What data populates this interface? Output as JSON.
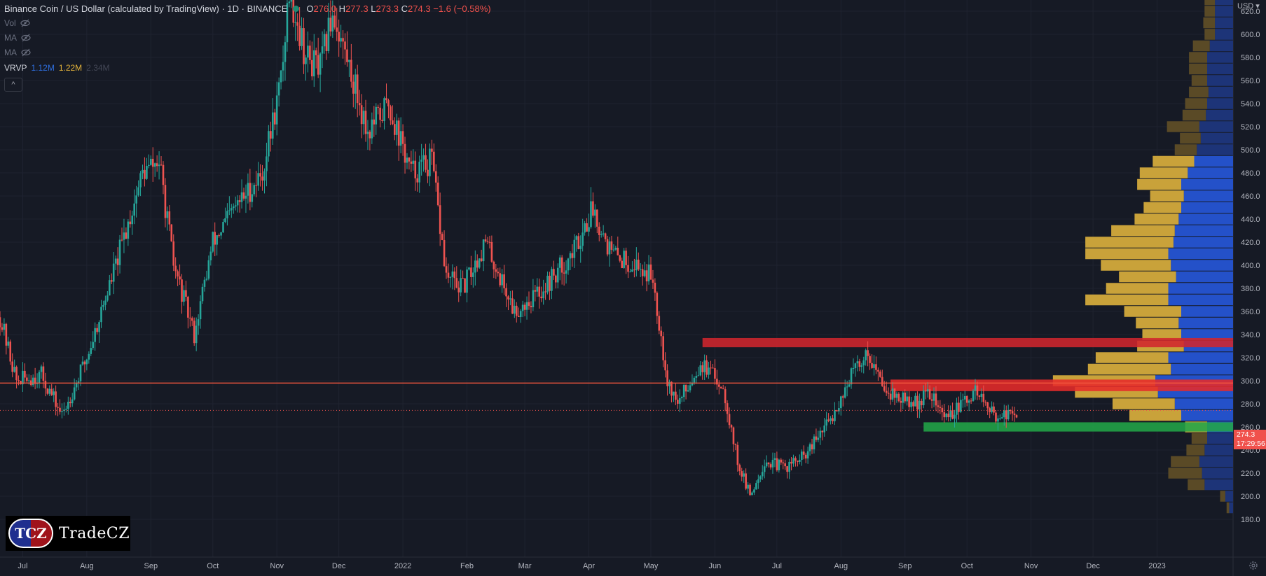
{
  "header": {
    "symbol": "Binance Coin / US Dollar (calculated by TradingView) · 1D · BINANCE",
    "o_label": "O",
    "o": "276.0",
    "h_label": "H",
    "h": "277.3",
    "l_label": "L",
    "l": "273.3",
    "c_label": "C",
    "c": "274.3",
    "change": "−1.6 (−0.58%)"
  },
  "indicators": [
    {
      "label": "Vol"
    },
    {
      "label": "MA"
    },
    {
      "label": "MA"
    }
  ],
  "vrvp": {
    "label": "VRVP",
    "v1": "1.12M",
    "v2": "1.22M",
    "v3": "2.34M"
  },
  "currency": "USD",
  "last_price": {
    "value": "274.3",
    "countdown": "17:29:56"
  },
  "logo": {
    "badge": "TCZ",
    "text": "TradeCZ"
  },
  "colors": {
    "background": "#161a25",
    "grid": "#1f2330",
    "axis_text": "#b2b5be",
    "up": "#26a69a",
    "down": "#ef5350",
    "resistance": "#e62a2a",
    "support": "#22a548",
    "vp_up": "#2451c9",
    "vp_down": "#c9a23a"
  },
  "chart_data": {
    "type": "candlestick",
    "title": "Binance Coin / US Dollar (calculated by TradingView)",
    "interval": "1D",
    "exchange": "BINANCE",
    "x_ticks": [
      "Jul",
      "Aug",
      "Sep",
      "Oct",
      "Nov",
      "Dec",
      "2022",
      "Feb",
      "Mar",
      "Apr",
      "May",
      "Jun",
      "Jul",
      "Aug",
      "Sep",
      "Oct",
      "Nov",
      "Dec",
      "2023"
    ],
    "y_ticks": [
      180,
      200,
      220,
      240,
      260,
      280,
      300,
      320,
      340,
      360,
      380,
      400,
      420,
      440,
      460,
      480,
      500,
      520,
      540,
      560,
      580,
      600,
      620
    ],
    "ylim": [
      170,
      640
    ],
    "price_path": [
      {
        "date": "2021-06-20",
        "close": 355
      },
      {
        "date": "2021-06-28",
        "close": 300
      },
      {
        "date": "2021-07-10",
        "close": 305
      },
      {
        "date": "2021-07-20",
        "close": 270
      },
      {
        "date": "2021-08-01",
        "close": 320
      },
      {
        "date": "2021-08-15",
        "close": 400
      },
      {
        "date": "2021-08-28",
        "close": 480
      },
      {
        "date": "2021-09-05",
        "close": 490
      },
      {
        "date": "2021-09-12",
        "close": 400
      },
      {
        "date": "2021-09-22",
        "close": 340
      },
      {
        "date": "2021-10-01",
        "close": 420
      },
      {
        "date": "2021-10-12",
        "close": 450
      },
      {
        "date": "2021-10-25",
        "close": 480
      },
      {
        "date": "2021-11-03",
        "close": 560
      },
      {
        "date": "2021-11-07",
        "close": 640
      },
      {
        "date": "2021-11-15",
        "close": 580
      },
      {
        "date": "2021-11-22",
        "close": 570
      },
      {
        "date": "2021-11-28",
        "close": 620
      },
      {
        "date": "2021-12-08",
        "close": 560
      },
      {
        "date": "2021-12-15",
        "close": 515
      },
      {
        "date": "2021-12-25",
        "close": 540
      },
      {
        "date": "2022-01-05",
        "close": 480
      },
      {
        "date": "2022-01-15",
        "close": 490
      },
      {
        "date": "2022-01-22",
        "close": 390
      },
      {
        "date": "2022-01-30",
        "close": 380
      },
      {
        "date": "2022-02-10",
        "close": 420
      },
      {
        "date": "2022-02-24",
        "close": 360
      },
      {
        "date": "2022-03-10",
        "close": 380
      },
      {
        "date": "2022-03-24",
        "close": 410
      },
      {
        "date": "2022-04-03",
        "close": 450
      },
      {
        "date": "2022-04-12",
        "close": 410
      },
      {
        "date": "2022-04-24",
        "close": 400
      },
      {
        "date": "2022-05-02",
        "close": 390
      },
      {
        "date": "2022-05-09",
        "close": 300
      },
      {
        "date": "2022-05-14",
        "close": 280
      },
      {
        "date": "2022-05-25",
        "close": 315
      },
      {
        "date": "2022-06-05",
        "close": 295
      },
      {
        "date": "2022-06-12",
        "close": 230
      },
      {
        "date": "2022-06-18",
        "close": 200
      },
      {
        "date": "2022-06-25",
        "close": 230
      },
      {
        "date": "2022-07-05",
        "close": 225
      },
      {
        "date": "2022-07-15",
        "close": 235
      },
      {
        "date": "2022-07-28",
        "close": 270
      },
      {
        "date": "2022-08-06",
        "close": 305
      },
      {
        "date": "2022-08-14",
        "close": 325
      },
      {
        "date": "2022-08-20",
        "close": 300
      },
      {
        "date": "2022-08-28",
        "close": 285
      },
      {
        "date": "2022-09-06",
        "close": 280
      },
      {
        "date": "2022-09-13",
        "close": 290
      },
      {
        "date": "2022-09-20",
        "close": 268
      },
      {
        "date": "2022-09-28",
        "close": 278
      },
      {
        "date": "2022-10-06",
        "close": 292
      },
      {
        "date": "2022-10-12",
        "close": 272
      },
      {
        "date": "2022-10-20",
        "close": 270
      },
      {
        "date": "2022-10-25",
        "close": 274.3
      }
    ],
    "annotations": {
      "horizontal_line": 298,
      "last_price_line": 274.3,
      "resistance_zone_upper": [
        329,
        337
      ],
      "resistance_zone_lower": [
        291,
        301
      ],
      "support_zone": [
        256,
        264
      ]
    },
    "volume_profile": [
      {
        "price": 630,
        "up": 14,
        "down": 8
      },
      {
        "price": 620,
        "up": 14,
        "down": 8
      },
      {
        "price": 610,
        "up": 14,
        "down": 9
      },
      {
        "price": 600,
        "up": 14,
        "down": 8
      },
      {
        "price": 590,
        "up": 18,
        "down": 13
      },
      {
        "price": 580,
        "up": 20,
        "down": 14
      },
      {
        "price": 570,
        "up": 20,
        "down": 14
      },
      {
        "price": 560,
        "up": 20,
        "down": 12
      },
      {
        "price": 550,
        "up": 19,
        "down": 15
      },
      {
        "price": 540,
        "up": 20,
        "down": 17
      },
      {
        "price": 530,
        "up": 21,
        "down": 18
      },
      {
        "price": 520,
        "up": 26,
        "down": 25
      },
      {
        "price": 510,
        "up": 25,
        "down": 16
      },
      {
        "price": 500,
        "up": 28,
        "down": 17
      },
      {
        "price": 490,
        "up": 30,
        "down": 32
      },
      {
        "price": 480,
        "up": 35,
        "down": 37
      },
      {
        "price": 470,
        "up": 40,
        "down": 34
      },
      {
        "price": 460,
        "up": 38,
        "down": 26
      },
      {
        "price": 450,
        "up": 40,
        "down": 29
      },
      {
        "price": 440,
        "up": 42,
        "down": 34
      },
      {
        "price": 430,
        "up": 45,
        "down": 49
      },
      {
        "price": 420,
        "up": 46,
        "down": 68
      },
      {
        "price": 410,
        "up": 50,
        "down": 64
      },
      {
        "price": 400,
        "up": 48,
        "down": 54
      },
      {
        "price": 390,
        "up": 44,
        "down": 44
      },
      {
        "price": 380,
        "up": 50,
        "down": 48
      },
      {
        "price": 370,
        "up": 50,
        "down": 64
      },
      {
        "price": 360,
        "up": 40,
        "down": 44
      },
      {
        "price": 350,
        "up": 42,
        "down": 33
      },
      {
        "price": 340,
        "up": 40,
        "down": 30
      },
      {
        "price": 330,
        "up": 38,
        "down": 36
      },
      {
        "price": 320,
        "up": 50,
        "down": 56
      },
      {
        "price": 310,
        "up": 48,
        "down": 64
      },
      {
        "price": 300,
        "up": 60,
        "down": 79
      },
      {
        "price": 290,
        "up": 58,
        "down": 64
      },
      {
        "price": 280,
        "up": 45,
        "down": 48
      },
      {
        "price": 270,
        "up": 40,
        "down": 40
      },
      {
        "price": 260,
        "up": 20,
        "down": 17
      },
      {
        "price": 250,
        "up": 20,
        "down": 12
      },
      {
        "price": 240,
        "up": 22,
        "down": 14
      },
      {
        "price": 230,
        "up": 26,
        "down": 22
      },
      {
        "price": 220,
        "up": 24,
        "down": 26
      },
      {
        "price": 210,
        "up": 22,
        "down": 13
      },
      {
        "price": 200,
        "up": 6,
        "down": 4
      },
      {
        "price": 190,
        "up": 3,
        "down": 2
      }
    ]
  }
}
